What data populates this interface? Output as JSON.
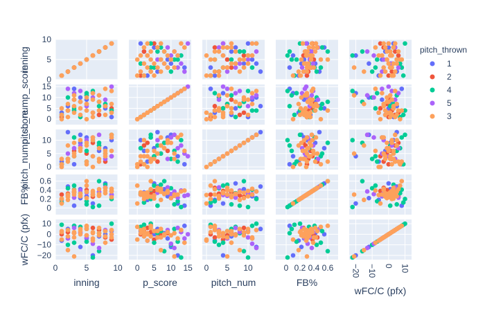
{
  "chart_data": {
    "type": "scatter",
    "subtype": "scatter-matrix",
    "title": "",
    "dimensions": [
      {
        "label": "inning",
        "range": [
          0,
          10
        ],
        "ticks": [
          0,
          5,
          10
        ],
        "tick_labels": [
          "0",
          "5",
          "10"
        ],
        "y_tick_labels": [
          "0",
          "5",
          "10"
        ]
      },
      {
        "label": "p_score",
        "range": [
          -2.5,
          16
        ],
        "ticks": [
          0,
          5,
          10,
          15
        ],
        "tick_labels": [
          "0",
          "5",
          "10",
          "15"
        ],
        "y_tick_labels": [
          "0",
          "5",
          "10",
          "15"
        ]
      },
      {
        "label": "pitch_num",
        "range": [
          -1,
          14
        ],
        "ticks": [
          0,
          5,
          10
        ],
        "tick_labels": [
          "0",
          "5",
          "10"
        ],
        "y_tick_labels": [
          "0",
          "5",
          "10"
        ]
      },
      {
        "label": "FB%",
        "range": [
          -0.15,
          0.75
        ],
        "ticks": [
          0,
          0.2,
          0.4,
          0.6
        ],
        "tick_labels": [
          "0",
          "0.2",
          "0.4",
          "0.6"
        ],
        "y_tick_labels": [
          "0",
          "0.2",
          "0.4",
          "0.6"
        ]
      },
      {
        "label": "wFC/C (pfx)",
        "range": [
          -24,
          14
        ],
        "ticks": [
          -20,
          -10,
          0,
          10
        ],
        "tick_labels": [
          "−20",
          "−10",
          "0",
          "10"
        ],
        "y_tick_labels": [
          "−20",
          "−10",
          "0",
          "10"
        ]
      }
    ],
    "x_axis_titles": [
      "inning",
      "p_score",
      "pitch_num",
      "FB%",
      "wFC/C (pfx)"
    ],
    "y_axis_titles": [
      "inning",
      "pitch_nump_score",
      "pitch_nump_score",
      "FB%",
      "wFC/C (pfx)"
    ],
    "series": [
      {
        "name": "1",
        "color": "#636efa",
        "values": [
          [
            1,
            3,
            2,
            0.18,
            -6
          ],
          [
            4,
            8,
            9,
            0.42,
            1
          ],
          [
            9,
            1,
            10,
            0.3,
            3
          ],
          [
            6,
            12,
            4,
            0.1,
            -20
          ],
          [
            2,
            6,
            13,
            0.48,
            5
          ],
          [
            7,
            2,
            6,
            0.35,
            -2
          ],
          [
            3,
            14,
            1,
            0.05,
            8
          ],
          [
            5,
            9,
            11,
            0.26,
            -4
          ],
          [
            8,
            5,
            7,
            0.55,
            0
          ],
          [
            4,
            10,
            12,
            0.22,
            -12
          ]
        ]
      },
      {
        "name": "2",
        "color": "#ef553b",
        "values": [
          [
            2,
            4,
            3,
            0.32,
            2
          ],
          [
            5,
            7,
            5,
            0.4,
            -1
          ],
          [
            7,
            2,
            8,
            0.28,
            4
          ],
          [
            8,
            6,
            2,
            0.45,
            -3
          ],
          [
            3,
            9,
            6,
            0.36,
            1
          ],
          [
            6,
            3,
            9,
            0.25,
            6
          ],
          [
            1,
            1,
            1,
            0.3,
            0
          ],
          [
            9,
            5,
            4,
            0.38,
            -5
          ]
        ]
      },
      {
        "name": "4",
        "color": "#00cc96",
        "values": [
          [
            1,
            2,
            1,
            0.12,
            9
          ],
          [
            3,
            5,
            4,
            0.5,
            -8
          ],
          [
            5,
            11,
            6,
            0.08,
            5
          ],
          [
            7,
            8,
            9,
            0.6,
            -16
          ],
          [
            9,
            4,
            12,
            0.2,
            10
          ],
          [
            2,
            10,
            3,
            0.44,
            -10
          ],
          [
            4,
            1,
            7,
            0.33,
            7
          ],
          [
            6,
            13,
            10,
            0.02,
            -22
          ],
          [
            8,
            7,
            5,
            0.52,
            3
          ],
          [
            5,
            12,
            2,
            0.15,
            -7
          ],
          [
            3,
            4,
            11,
            0.41,
            8
          ],
          [
            7,
            6,
            8,
            0.05,
            1
          ]
        ]
      },
      {
        "name": "5",
        "color": "#ab63fa",
        "values": [
          [
            2,
            14,
            5,
            0.27,
            -4
          ],
          [
            4,
            13,
            8,
            0.39,
            2
          ],
          [
            6,
            10,
            11,
            0.31,
            -9
          ],
          [
            8,
            9,
            3,
            0.46,
            4
          ],
          [
            3,
            12,
            7,
            0.23,
            6
          ],
          [
            5,
            6,
            10,
            0.34,
            -3
          ],
          [
            7,
            11,
            12,
            0.37,
            -13
          ],
          [
            9,
            15,
            4,
            0.29,
            0
          ]
        ]
      },
      {
        "name": "3",
        "color": "#fda15c",
        "values": [
          [
            1,
            0,
            0,
            0.1,
            -5
          ],
          [
            1,
            2,
            1,
            0.2,
            2
          ],
          [
            2,
            1,
            2,
            0.3,
            4
          ],
          [
            2,
            4,
            3,
            0.25,
            -2
          ],
          [
            3,
            3,
            4,
            0.35,
            1
          ],
          [
            3,
            6,
            5,
            0.4,
            -3
          ],
          [
            4,
            5,
            6,
            0.28,
            3
          ],
          [
            4,
            8,
            7,
            0.32,
            0
          ],
          [
            5,
            7,
            8,
            0.36,
            5
          ],
          [
            5,
            10,
            9,
            0.22,
            -1
          ],
          [
            6,
            9,
            10,
            0.38,
            2
          ],
          [
            6,
            12,
            11,
            0.3,
            -4
          ],
          [
            7,
            4,
            2,
            0.42,
            6
          ],
          [
            7,
            11,
            3,
            0.27,
            1
          ],
          [
            8,
            2,
            4,
            0.33,
            -2
          ],
          [
            8,
            6,
            5,
            0.45,
            3
          ],
          [
            9,
            3,
            6,
            0.24,
            0
          ],
          [
            9,
            13,
            12,
            0.37,
            4
          ],
          [
            2,
            7,
            8,
            0.18,
            -15
          ],
          [
            5,
            0,
            1,
            0.5,
            7
          ],
          [
            6,
            3,
            0,
            0.29,
            -6
          ],
          [
            3,
            9,
            9,
            0.34,
            2
          ],
          [
            7,
            8,
            7,
            0.31,
            -1
          ],
          [
            4,
            2,
            10,
            0.26,
            5
          ],
          [
            8,
            14,
            6,
            0.39,
            -8
          ],
          [
            1,
            5,
            3,
            0.21,
            3
          ],
          [
            9,
            7,
            11,
            0.43,
            -3
          ],
          [
            6,
            1,
            4,
            0.35,
            1
          ],
          [
            3,
            11,
            5,
            0.3,
            -21
          ],
          [
            5,
            4,
            2,
            0.6,
            8
          ]
        ]
      }
    ],
    "legend": {
      "title": "pitch_thrown",
      "placement": "right",
      "entries": [
        "1",
        "2",
        "4",
        "5",
        "3"
      ]
    },
    "grid": true
  }
}
